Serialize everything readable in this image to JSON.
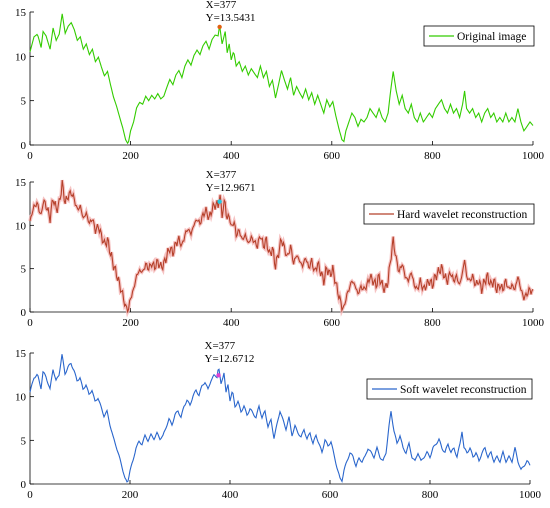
{
  "chart_data": [
    {
      "type": "line",
      "id": "original",
      "series": [
        {
          "name": "Original image",
          "color": "#33cc00",
          "shadow": null
        }
      ],
      "marker": {
        "x": 377,
        "y": 13.5431,
        "label_x": "X=377",
        "label_y": "Y=13.5431",
        "color": "#e06010"
      },
      "xlim": [
        0,
        1000
      ],
      "ylim": [
        0,
        15
      ],
      "xticks": [
        0,
        200,
        400,
        600,
        800,
        1000
      ],
      "yticks": [
        0,
        5,
        10,
        15
      ],
      "legend": "top-right"
    },
    {
      "type": "line",
      "id": "hard",
      "series": [
        {
          "name": "Hard wavelet reconstruction",
          "color": "#b5402a",
          "shadow": "#f4b4b4"
        }
      ],
      "marker": {
        "x": 377,
        "y": 12.9671,
        "label_x": "X=377",
        "label_y": "Y=12.9671",
        "color": "#22c8e0"
      },
      "xlim": [
        0,
        1000
      ],
      "ylim": [
        0,
        15
      ],
      "xticks": [
        0,
        200,
        400,
        600,
        800,
        1000
      ],
      "yticks": [
        0,
        5,
        10,
        15
      ],
      "legend": "top-right"
    },
    {
      "type": "line",
      "id": "soft",
      "series": [
        {
          "name": "Soft wavelet reconstruction",
          "color": "#2a66cc",
          "shadow": null
        }
      ],
      "marker": {
        "x": 377,
        "y": 12.6712,
        "label_x": "X=377",
        "label_y": "Y=12.6712",
        "color": "#e040d0"
      },
      "xlim": [
        0,
        1000
      ],
      "ylim": [
        0,
        15
      ],
      "xticks": [
        0,
        200,
        400,
        600,
        800,
        1000
      ],
      "yticks": [
        0,
        5,
        10,
        15
      ],
      "legend": "top-right"
    }
  ],
  "signal_knots": [
    [
      0,
      10.5
    ],
    [
      8,
      12.2
    ],
    [
      15,
      12.5
    ],
    [
      22,
      11
    ],
    [
      26,
      12.8
    ],
    [
      32,
      12.3
    ],
    [
      40,
      10.8
    ],
    [
      46,
      13.2
    ],
    [
      52,
      11.8
    ],
    [
      58,
      12.5
    ],
    [
      64,
      14.8
    ],
    [
      70,
      12.6
    ],
    [
      76,
      13.4
    ],
    [
      82,
      13.8
    ],
    [
      88,
      13
    ],
    [
      94,
      11.8
    ],
    [
      100,
      12.2
    ],
    [
      106,
      10.8
    ],
    [
      112,
      11.4
    ],
    [
      118,
      10.2
    ],
    [
      124,
      10.8
    ],
    [
      130,
      9.4
    ],
    [
      136,
      9.9
    ],
    [
      142,
      8.8
    ],
    [
      148,
      7.8
    ],
    [
      154,
      8.3
    ],
    [
      160,
      6.8
    ],
    [
      166,
      5.4
    ],
    [
      172,
      4.4
    ],
    [
      178,
      3.2
    ],
    [
      184,
      2
    ],
    [
      190,
      0.6
    ],
    [
      195,
      0.1
    ],
    [
      200,
      1.6
    ],
    [
      206,
      2.6
    ],
    [
      212,
      4.2
    ],
    [
      218,
      4.8
    ],
    [
      224,
      4.6
    ],
    [
      230,
      5.5
    ],
    [
      236,
      5
    ],
    [
      242,
      5.6
    ],
    [
      248,
      5.2
    ],
    [
      254,
      5.8
    ],
    [
      260,
      5.2
    ],
    [
      266,
      5.5
    ],
    [
      272,
      6.5
    ],
    [
      278,
      7.4
    ],
    [
      284,
      6.8
    ],
    [
      290,
      7.9
    ],
    [
      296,
      8.4
    ],
    [
      302,
      7.6
    ],
    [
      308,
      8.9
    ],
    [
      314,
      9.6
    ],
    [
      320,
      9
    ],
    [
      326,
      10.1
    ],
    [
      332,
      10.7
    ],
    [
      338,
      10.2
    ],
    [
      344,
      11.2
    ],
    [
      350,
      11.7
    ],
    [
      356,
      10.8
    ],
    [
      362,
      11.9
    ],
    [
      368,
      12.4
    ],
    [
      374,
      12.3
    ],
    [
      377,
      13.5
    ],
    [
      382,
      11.4
    ],
    [
      388,
      12.8
    ],
    [
      392,
      10.4
    ],
    [
      396,
      11.4
    ],
    [
      400,
      9.6
    ],
    [
      405,
      10.6
    ],
    [
      410,
      8.9
    ],
    [
      416,
      9.4
    ],
    [
      422,
      8.3
    ],
    [
      428,
      8.9
    ],
    [
      434,
      7.9
    ],
    [
      440,
      8.6
    ],
    [
      446,
      8.1
    ],
    [
      452,
      7.6
    ],
    [
      458,
      8.9
    ],
    [
      464,
      7.6
    ],
    [
      470,
      8.3
    ],
    [
      476,
      6.6
    ],
    [
      482,
      7.3
    ],
    [
      488,
      5.3
    ],
    [
      494,
      6.8
    ],
    [
      500,
      8.4
    ],
    [
      506,
      7.3
    ],
    [
      512,
      6.3
    ],
    [
      518,
      7.6
    ],
    [
      524,
      5.6
    ],
    [
      530,
      6.6
    ],
    [
      536,
      5.9
    ],
    [
      542,
      5.3
    ],
    [
      548,
      6.3
    ],
    [
      554,
      5.1
    ],
    [
      560,
      5.9
    ],
    [
      566,
      4.6
    ],
    [
      572,
      5.6
    ],
    [
      578,
      4.6
    ],
    [
      584,
      3.6
    ],
    [
      590,
      5.1
    ],
    [
      596,
      4.3
    ],
    [
      602,
      4.9
    ],
    [
      608,
      3.3
    ],
    [
      614,
      1.9
    ],
    [
      620,
      0.6
    ],
    [
      624,
      0.4
    ],
    [
      628,
      1.6
    ],
    [
      634,
      2.6
    ],
    [
      640,
      3.6
    ],
    [
      646,
      3.1
    ],
    [
      652,
      2.1
    ],
    [
      658,
      2.9
    ],
    [
      664,
      2.6
    ],
    [
      670,
      3.1
    ],
    [
      676,
      4.1
    ],
    [
      682,
      3.6
    ],
    [
      688,
      3.1
    ],
    [
      694,
      4.1
    ],
    [
      700,
      3.1
    ],
    [
      706,
      2.6
    ],
    [
      712,
      3.6
    ],
    [
      718,
      6.6
    ],
    [
      722,
      8.3
    ],
    [
      728,
      6.1
    ],
    [
      734,
      4.6
    ],
    [
      740,
      5.6
    ],
    [
      746,
      4.1
    ],
    [
      752,
      3.6
    ],
    [
      758,
      4.6
    ],
    [
      764,
      3.1
    ],
    [
      770,
      2.6
    ],
    [
      776,
      3.6
    ],
    [
      782,
      2.6
    ],
    [
      788,
      3.1
    ],
    [
      794,
      3.6
    ],
    [
      800,
      3.1
    ],
    [
      806,
      4.1
    ],
    [
      812,
      4.6
    ],
    [
      818,
      5.1
    ],
    [
      824,
      4.1
    ],
    [
      830,
      3.6
    ],
    [
      836,
      4.6
    ],
    [
      842,
      3.6
    ],
    [
      848,
      4.1
    ],
    [
      854,
      3.1
    ],
    [
      860,
      4.6
    ],
    [
      864,
      6.1
    ],
    [
      868,
      4.1
    ],
    [
      874,
      3.6
    ],
    [
      880,
      4.1
    ],
    [
      886,
      3.1
    ],
    [
      892,
      3.6
    ],
    [
      898,
      2.6
    ],
    [
      904,
      3.6
    ],
    [
      910,
      4.1
    ],
    [
      916,
      3.1
    ],
    [
      922,
      3.6
    ],
    [
      928,
      2.6
    ],
    [
      934,
      3.1
    ],
    [
      940,
      2.6
    ],
    [
      946,
      3.6
    ],
    [
      952,
      2.6
    ],
    [
      958,
      3.1
    ],
    [
      964,
      2.6
    ],
    [
      970,
      4.1
    ],
    [
      976,
      2.6
    ],
    [
      982,
      1.6
    ],
    [
      988,
      2.1
    ],
    [
      994,
      2.6
    ],
    [
      1000,
      2.2
    ]
  ]
}
